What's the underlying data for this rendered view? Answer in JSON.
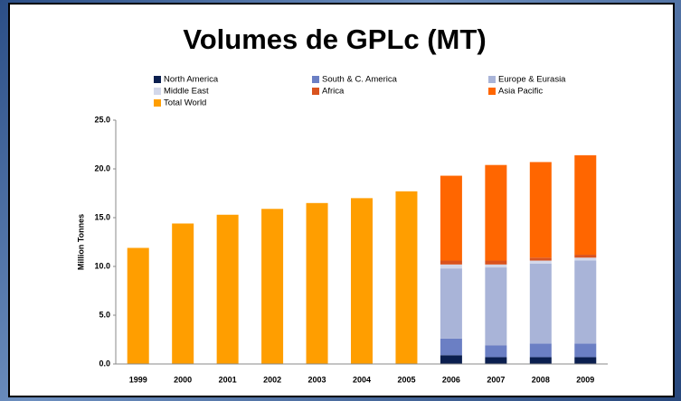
{
  "chart_data": {
    "type": "stacked_bar",
    "title": "Volumes de GPLc (MT)",
    "y_label": "Million Tonnes",
    "categories": [
      "1999",
      "2000",
      "2001",
      "2002",
      "2003",
      "2004",
      "2005",
      "2006",
      "2007",
      "2008",
      "2009"
    ],
    "series": [
      {
        "name": "North America",
        "color": "#0b1f4f",
        "values": [
          null,
          null,
          null,
          null,
          null,
          null,
          null,
          0.9,
          0.7,
          0.7,
          0.7
        ]
      },
      {
        "name": "South & C. America",
        "color": "#6b7fc4",
        "values": [
          null,
          null,
          null,
          null,
          null,
          null,
          null,
          1.7,
          1.2,
          1.4,
          1.4
        ]
      },
      {
        "name": "Europe & Eurasia",
        "color": "#a9b4d8",
        "values": [
          null,
          null,
          null,
          null,
          null,
          null,
          null,
          7.2,
          8.0,
          8.2,
          8.5
        ]
      },
      {
        "name": "Middle East",
        "color": "#d3d8ea",
        "values": [
          null,
          null,
          null,
          null,
          null,
          null,
          null,
          0.4,
          0.3,
          0.3,
          0.3
        ]
      },
      {
        "name": "Africa",
        "color": "#d9531e",
        "values": [
          null,
          null,
          null,
          null,
          null,
          null,
          null,
          0.4,
          0.4,
          0.3,
          0.3
        ]
      },
      {
        "name": "Asia Pacific",
        "color": "#ff6600",
        "values": [
          null,
          null,
          null,
          null,
          null,
          null,
          null,
          8.7,
          9.8,
          9.8,
          10.2
        ]
      },
      {
        "name": "Total World",
        "color": "#ff9e00",
        "values": [
          11.9,
          14.4,
          15.3,
          15.9,
          16.5,
          17.0,
          17.7,
          null,
          null,
          null,
          null
        ]
      }
    ],
    "ylim": [
      0,
      25
    ],
    "yticks": [
      {
        "value": 0,
        "label": "0.0"
      },
      {
        "value": 5,
        "label": "5.0"
      },
      {
        "value": 10,
        "label": "10.0"
      },
      {
        "value": 15,
        "label": "15.0"
      },
      {
        "value": 20,
        "label": "20.0"
      },
      {
        "value": 25,
        "label": "25.0"
      }
    ]
  }
}
